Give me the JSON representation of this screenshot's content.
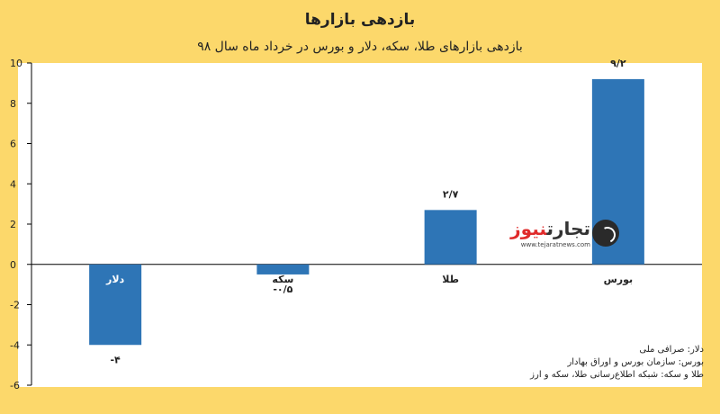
{
  "header": {
    "title": "بازدهی بازارها",
    "subtitle": "بازدهی بازارهای طلا، سکه، دلار و بورس در خرداد ماه سال ۹۸"
  },
  "logo": {
    "name_part1": "تجارت",
    "name_part2": "نیوز",
    "url": "www.tejaratnews.com"
  },
  "source_notes": [
    "دلار: صرافی ملی",
    "بورس: سازمان بورس و اوراق بهادار",
    "طلا و سکه: شبکه اطلاع‌رسانی طلا، سکه و ارز"
  ],
  "colors": {
    "background": "#fcd86b",
    "plot_background": "#ffffff",
    "bar": "#2e75b6"
  },
  "chart_data": {
    "type": "bar",
    "title": "بازدهی بازارها",
    "subtitle": "بازدهی بازارهای طلا، سکه، دلار و بورس در خرداد ماه سال ۹۸",
    "categories": [
      "دلار",
      "سکه",
      "طلا",
      "بورس"
    ],
    "values": [
      -4,
      -0.5,
      2.7,
      9.2
    ],
    "value_labels": [
      "-۴",
      "-۰/۵",
      "۲/۷",
      "۹/۲"
    ],
    "ylim": [
      -6,
      10
    ],
    "yticks": [
      10,
      8,
      6,
      4,
      2,
      0,
      -2,
      -4,
      -6
    ],
    "ytick_labels": [
      "10",
      "8",
      "6",
      "4",
      "2",
      "0",
      "-2",
      "-4",
      "-6"
    ],
    "xlabel": "",
    "ylabel": "",
    "grid": false,
    "legend": "none"
  }
}
